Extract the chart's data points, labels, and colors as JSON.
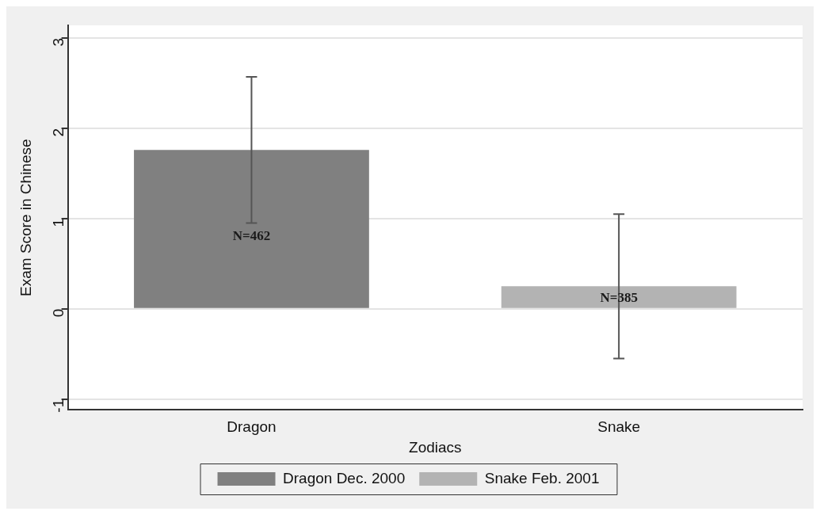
{
  "chart_data": {
    "type": "bar",
    "xlabel": "Zodiacs",
    "ylabel": "Exam Score in Chinese",
    "categories": [
      "Dragon",
      "Snake"
    ],
    "series": [
      {
        "name": "Dragon Dec. 2000",
        "color": "#808080",
        "values": [
          1.76,
          null
        ],
        "errors": [
          [
            0.95,
            2.57
          ],
          null
        ]
      },
      {
        "name": "Snake Feb. 2001",
        "color": "#b3b3b3",
        "values": [
          null,
          0.25
        ],
        "errors": [
          null,
          [
            -0.55,
            1.05
          ]
        ]
      }
    ],
    "annotations": [
      "N=462",
      "N=385"
    ],
    "ylim": [
      -1.12,
      3.14
    ],
    "yticks": [
      -1,
      0,
      1,
      2,
      3
    ],
    "grid": "y",
    "legend": "bottom"
  }
}
